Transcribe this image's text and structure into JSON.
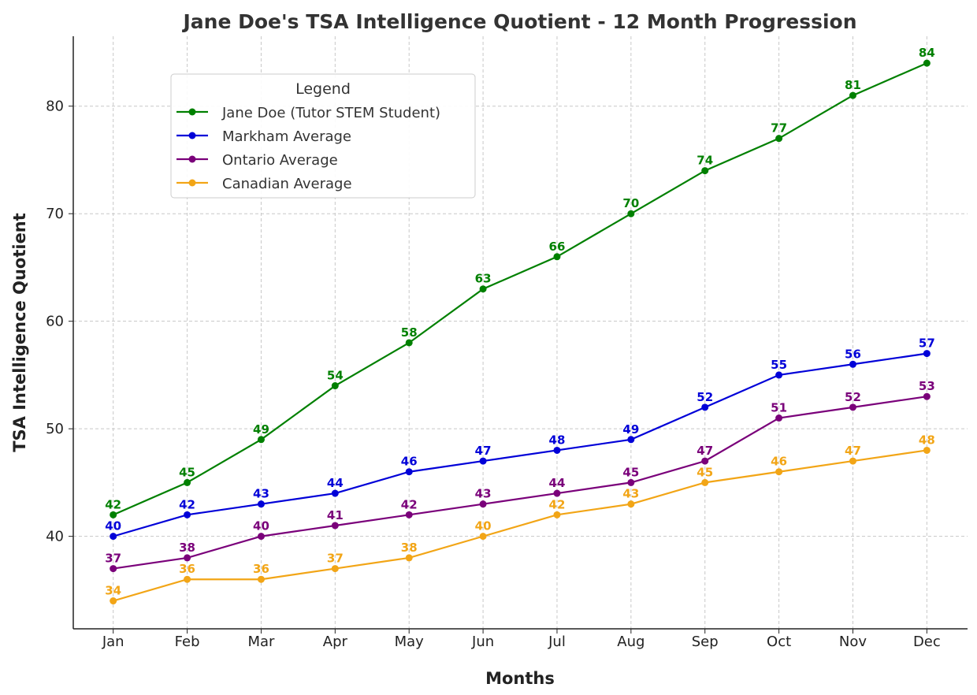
{
  "chart_data": {
    "type": "line",
    "title": "Jane Doe's TSA Intelligence Quotient - 12 Month Progression",
    "xlabel": "Months",
    "ylabel": "TSA Intelligence Quotient",
    "categories": [
      "Jan",
      "Feb",
      "Mar",
      "Apr",
      "May",
      "Jun",
      "Jul",
      "Aug",
      "Sep",
      "Oct",
      "Nov",
      "Dec"
    ],
    "yticks": [
      40,
      50,
      60,
      70,
      80
    ],
    "ylim": [
      31.4,
      86.5
    ],
    "grid": true,
    "legend": {
      "title": "Legend",
      "placement": "upper-left"
    },
    "series": [
      {
        "name": "Jane Doe (Tutor STEM Student)",
        "color": "#008000",
        "values": [
          42,
          45,
          49,
          54,
          58,
          63,
          66,
          70,
          74,
          77,
          81,
          84
        ]
      },
      {
        "name": "Markham Average",
        "color": "#0000d8",
        "values": [
          40,
          42,
          43,
          44,
          46,
          47,
          48,
          49,
          52,
          55,
          56,
          57
        ]
      },
      {
        "name": "Ontario Average",
        "color": "#7a007a",
        "values": [
          37,
          38,
          40,
          41,
          42,
          43,
          44,
          45,
          47,
          51,
          52,
          53
        ]
      },
      {
        "name": "Canadian Average",
        "color": "#f2a516",
        "values": [
          34,
          36,
          36,
          37,
          38,
          40,
          42,
          43,
          45,
          46,
          47,
          48
        ]
      }
    ]
  }
}
